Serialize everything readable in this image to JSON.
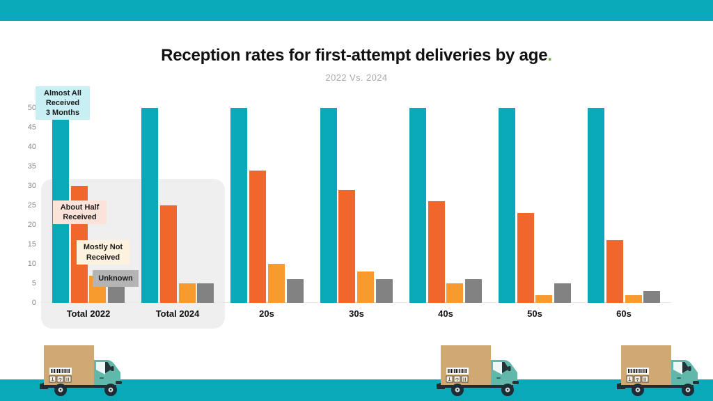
{
  "banners": {
    "top_color": "#0aa9b9",
    "bottom_color": "#0aa9b9"
  },
  "title": {
    "text": "Reception rates for first-attempt deliveries by age",
    "period": ".",
    "color": "#111111",
    "period_color": "#6cb33f"
  },
  "subtitle": {
    "text": "2022 Vs. 2024",
    "color": "#a9a9a9"
  },
  "chart_data": {
    "type": "bar",
    "title": "Reception rates for first-attempt deliveries by age.",
    "subtitle": "2022 Vs. 2024",
    "categories": [
      "Total 2022",
      "Total 2024",
      "20s",
      "30s",
      "40s",
      "50s",
      "60s"
    ],
    "series": [
      {
        "name": "Almost All Received 3 Months",
        "color": "#0aa9b9",
        "values": [
          50,
          50,
          50,
          50,
          50,
          50,
          50
        ]
      },
      {
        "name": "About Half Received",
        "color": "#f0662b",
        "values": [
          30,
          25,
          34,
          29,
          26,
          23,
          16
        ]
      },
      {
        "name": "Mostly Not Received",
        "color": "#f89b2e",
        "values": [
          7,
          5,
          10,
          8,
          5,
          2,
          2
        ]
      },
      {
        "name": "Unknown",
        "color": "#828282",
        "values": [
          5,
          5,
          6,
          6,
          6,
          5,
          3
        ]
      }
    ],
    "ylim": [
      0,
      50
    ],
    "yticks": [
      0,
      5,
      10,
      15,
      20,
      25,
      30,
      35,
      40,
      45,
      50
    ],
    "grid": false,
    "axis_color": "#8a8a8a",
    "legend_position": "inline-annotations",
    "highlight_panel": {
      "covers": [
        "Total 2022",
        "Total 2024"
      ],
      "color": "#efefef"
    }
  },
  "annotations": [
    {
      "id": "almost-all",
      "text": "Almost All\nReceived\n3 Months",
      "bg": "#c8f0f4"
    },
    {
      "id": "about-half",
      "text": "About Half\nReceived",
      "bg": "#fbe3da"
    },
    {
      "id": "mostly-not",
      "text": "Mostly Not\nReceived",
      "bg": "#fdf2de"
    },
    {
      "id": "unknown",
      "text": "Unknown",
      "bg": "#b4b4b4"
    }
  ],
  "illustrations": {
    "truck_count": 3,
    "truck_label": "delivery truck with cardboard box"
  }
}
